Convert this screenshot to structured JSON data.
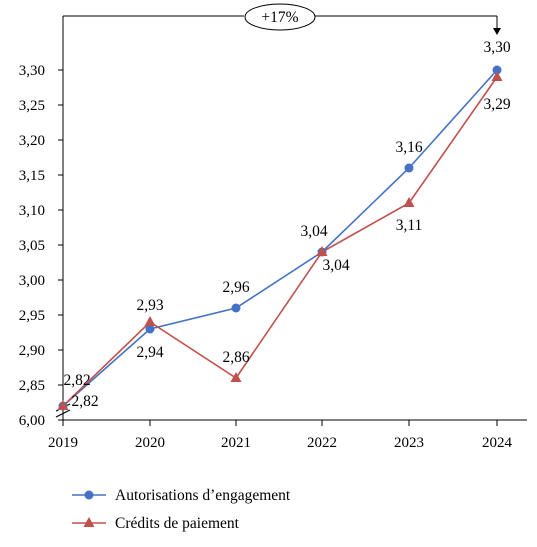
{
  "chart_data": {
    "type": "line",
    "categories": [
      "2019",
      "2020",
      "2021",
      "2022",
      "2023",
      "2024"
    ],
    "y_ticks": [
      "6,00",
      "2,85",
      "2,90",
      "2,95",
      "3,00",
      "3,05",
      "3,10",
      "3,15",
      "3,20",
      "3,25",
      "3,30"
    ],
    "axis_break": "6,00 below 2,85",
    "ylim": [
      2.8,
      3.3
    ],
    "grid": false,
    "legend_position": "bottom",
    "annotation": {
      "label": "+17%"
    },
    "series": [
      {
        "name": "Autorisations d’engagement",
        "color": "#4472C4",
        "marker": "circle",
        "values": [
          2.82,
          2.93,
          2.96,
          3.04,
          3.16,
          3.3
        ],
        "labels": [
          "2,82",
          "2,93",
          "2,96",
          "3,04",
          "3,16",
          "3,30"
        ]
      },
      {
        "name": "Crédits de paiement",
        "color": "#C0504D",
        "marker": "triangle",
        "values": [
          2.82,
          2.94,
          2.86,
          3.04,
          3.11,
          3.29
        ],
        "labels": [
          "2,82",
          "2,94",
          "2,86",
          "3,04",
          "3,11",
          "3,29"
        ]
      }
    ]
  }
}
